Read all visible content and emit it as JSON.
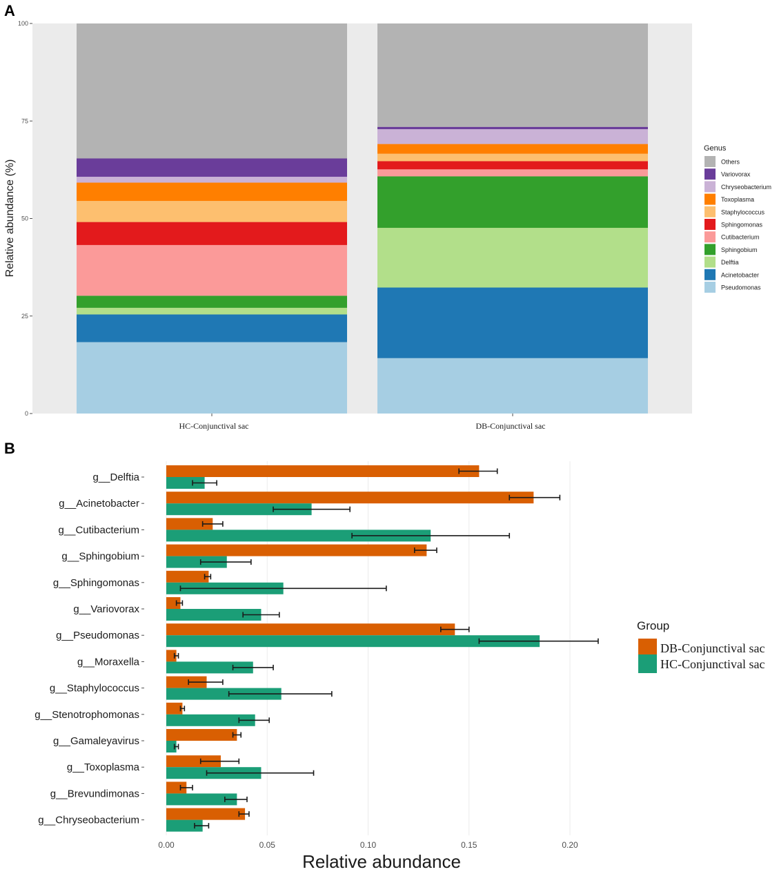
{
  "figure": {
    "panel_a_label": "A",
    "panel_b_label": "B"
  },
  "chart_data": [
    {
      "type": "bar",
      "subtype": "stacked-100",
      "title": "",
      "xlabel": "",
      "ylabel": "Relative abundance (%)",
      "ylim": [
        0,
        100
      ],
      "yticks": [
        0,
        25,
        50,
        75,
        100
      ],
      "categories": [
        "HC-Conjunctival sac",
        "DB-Conjunctival sac"
      ],
      "legend_title": "Genus",
      "legend_position": "right",
      "stack_order_bottom_to_top": [
        "Pseudomonas",
        "Acinetobacter",
        "Delftia",
        "Sphingobium",
        "Cutibacterium",
        "Sphingomonas",
        "Staphylococcus",
        "Toxoplasma",
        "Chryseobacterium",
        "Variovorax",
        "Others"
      ],
      "legend_order": [
        "Others",
        "Variovorax",
        "Chryseobacterium",
        "Toxoplasma",
        "Staphylococcus",
        "Sphingomonas",
        "Cutibacterium",
        "Sphingobium",
        "Delftia",
        "Acinetobacter",
        "Pseudomonas"
      ],
      "colors": {
        "Others": "#b3b3b3",
        "Variovorax": "#6a3d9a",
        "Chryseobacterium": "#cab2d6",
        "Toxoplasma": "#ff7f00",
        "Staphylococcus": "#fdbf6f",
        "Sphingomonas": "#e31a1c",
        "Cutibacterium": "#fb9a99",
        "Sphingobium": "#33a02c",
        "Delftia": "#b2df8a",
        "Acinetobacter": "#1f78b4",
        "Pseudomonas": "#a6cee3"
      },
      "series": [
        {
          "name": "Pseudomonas",
          "values": [
            18.3,
            14.2
          ]
        },
        {
          "name": "Acinetobacter",
          "values": [
            7.1,
            18.1
          ]
        },
        {
          "name": "Delftia",
          "values": [
            1.7,
            15.3
          ]
        },
        {
          "name": "Sphingobium",
          "values": [
            3.1,
            13.2
          ]
        },
        {
          "name": "Cutibacterium",
          "values": [
            13.0,
            1.8
          ]
        },
        {
          "name": "Sphingomonas",
          "values": [
            5.9,
            2.1
          ]
        },
        {
          "name": "Staphylococcus",
          "values": [
            5.4,
            1.9
          ]
        },
        {
          "name": "Toxoplasma",
          "values": [
            4.7,
            2.5
          ]
        },
        {
          "name": "Chryseobacterium",
          "values": [
            1.5,
            3.8
          ]
        },
        {
          "name": "Variovorax",
          "values": [
            4.7,
            0.6
          ]
        },
        {
          "name": "Others",
          "values": [
            34.6,
            26.5
          ]
        }
      ]
    },
    {
      "type": "bar",
      "subtype": "horizontal-grouped-errorbar",
      "title": "",
      "xlabel": "Relative abundance",
      "ylabel": "",
      "xlim": [
        0,
        0.2
      ],
      "xticks": [
        0.0,
        0.05,
        0.1,
        0.15,
        0.2
      ],
      "xtick_labels": [
        "0.00",
        "0.05",
        "0.10",
        "0.15",
        "0.20"
      ],
      "grid": true,
      "legend_title": "Group",
      "legend_position": "right",
      "categories": [
        "g__Delftia",
        "g__Acinetobacter",
        "g__Cutibacterium",
        "g__Sphingobium",
        "g__Sphingomonas",
        "g__Variovorax",
        "g__Pseudomonas",
        "g__Moraxella",
        "g__Staphylococcus",
        "g__Stenotrophomonas",
        "g__Gamaleyavirus",
        "g__Toxoplasma",
        "g__Brevundimonas",
        "g__Chryseobacterium"
      ],
      "series": [
        {
          "name": "DB-Conjunctival sac",
          "color": "#d95f02",
          "values": [
            0.155,
            0.182,
            0.023,
            0.129,
            0.021,
            0.007,
            0.143,
            0.005,
            0.02,
            0.008,
            0.035,
            0.027,
            0.01,
            0.039
          ],
          "err_low": [
            0.145,
            0.17,
            0.018,
            0.123,
            0.019,
            0.005,
            0.136,
            0.004,
            0.011,
            0.007,
            0.033,
            0.017,
            0.007,
            0.036
          ],
          "err_high": [
            0.164,
            0.195,
            0.028,
            0.134,
            0.022,
            0.008,
            0.15,
            0.006,
            0.028,
            0.009,
            0.037,
            0.036,
            0.013,
            0.041
          ]
        },
        {
          "name": "HC-Conjunctival sac",
          "color": "#1b9e77",
          "values": [
            0.019,
            0.072,
            0.131,
            0.03,
            0.058,
            0.047,
            0.185,
            0.043,
            0.057,
            0.044,
            0.005,
            0.047,
            0.035,
            0.018
          ],
          "err_low": [
            0.013,
            0.053,
            0.092,
            0.017,
            0.007,
            0.038,
            0.155,
            0.033,
            0.031,
            0.036,
            0.004,
            0.02,
            0.029,
            0.014
          ],
          "err_high": [
            0.025,
            0.091,
            0.17,
            0.042,
            0.109,
            0.056,
            0.214,
            0.053,
            0.082,
            0.051,
            0.006,
            0.073,
            0.04,
            0.021
          ]
        }
      ]
    }
  ]
}
